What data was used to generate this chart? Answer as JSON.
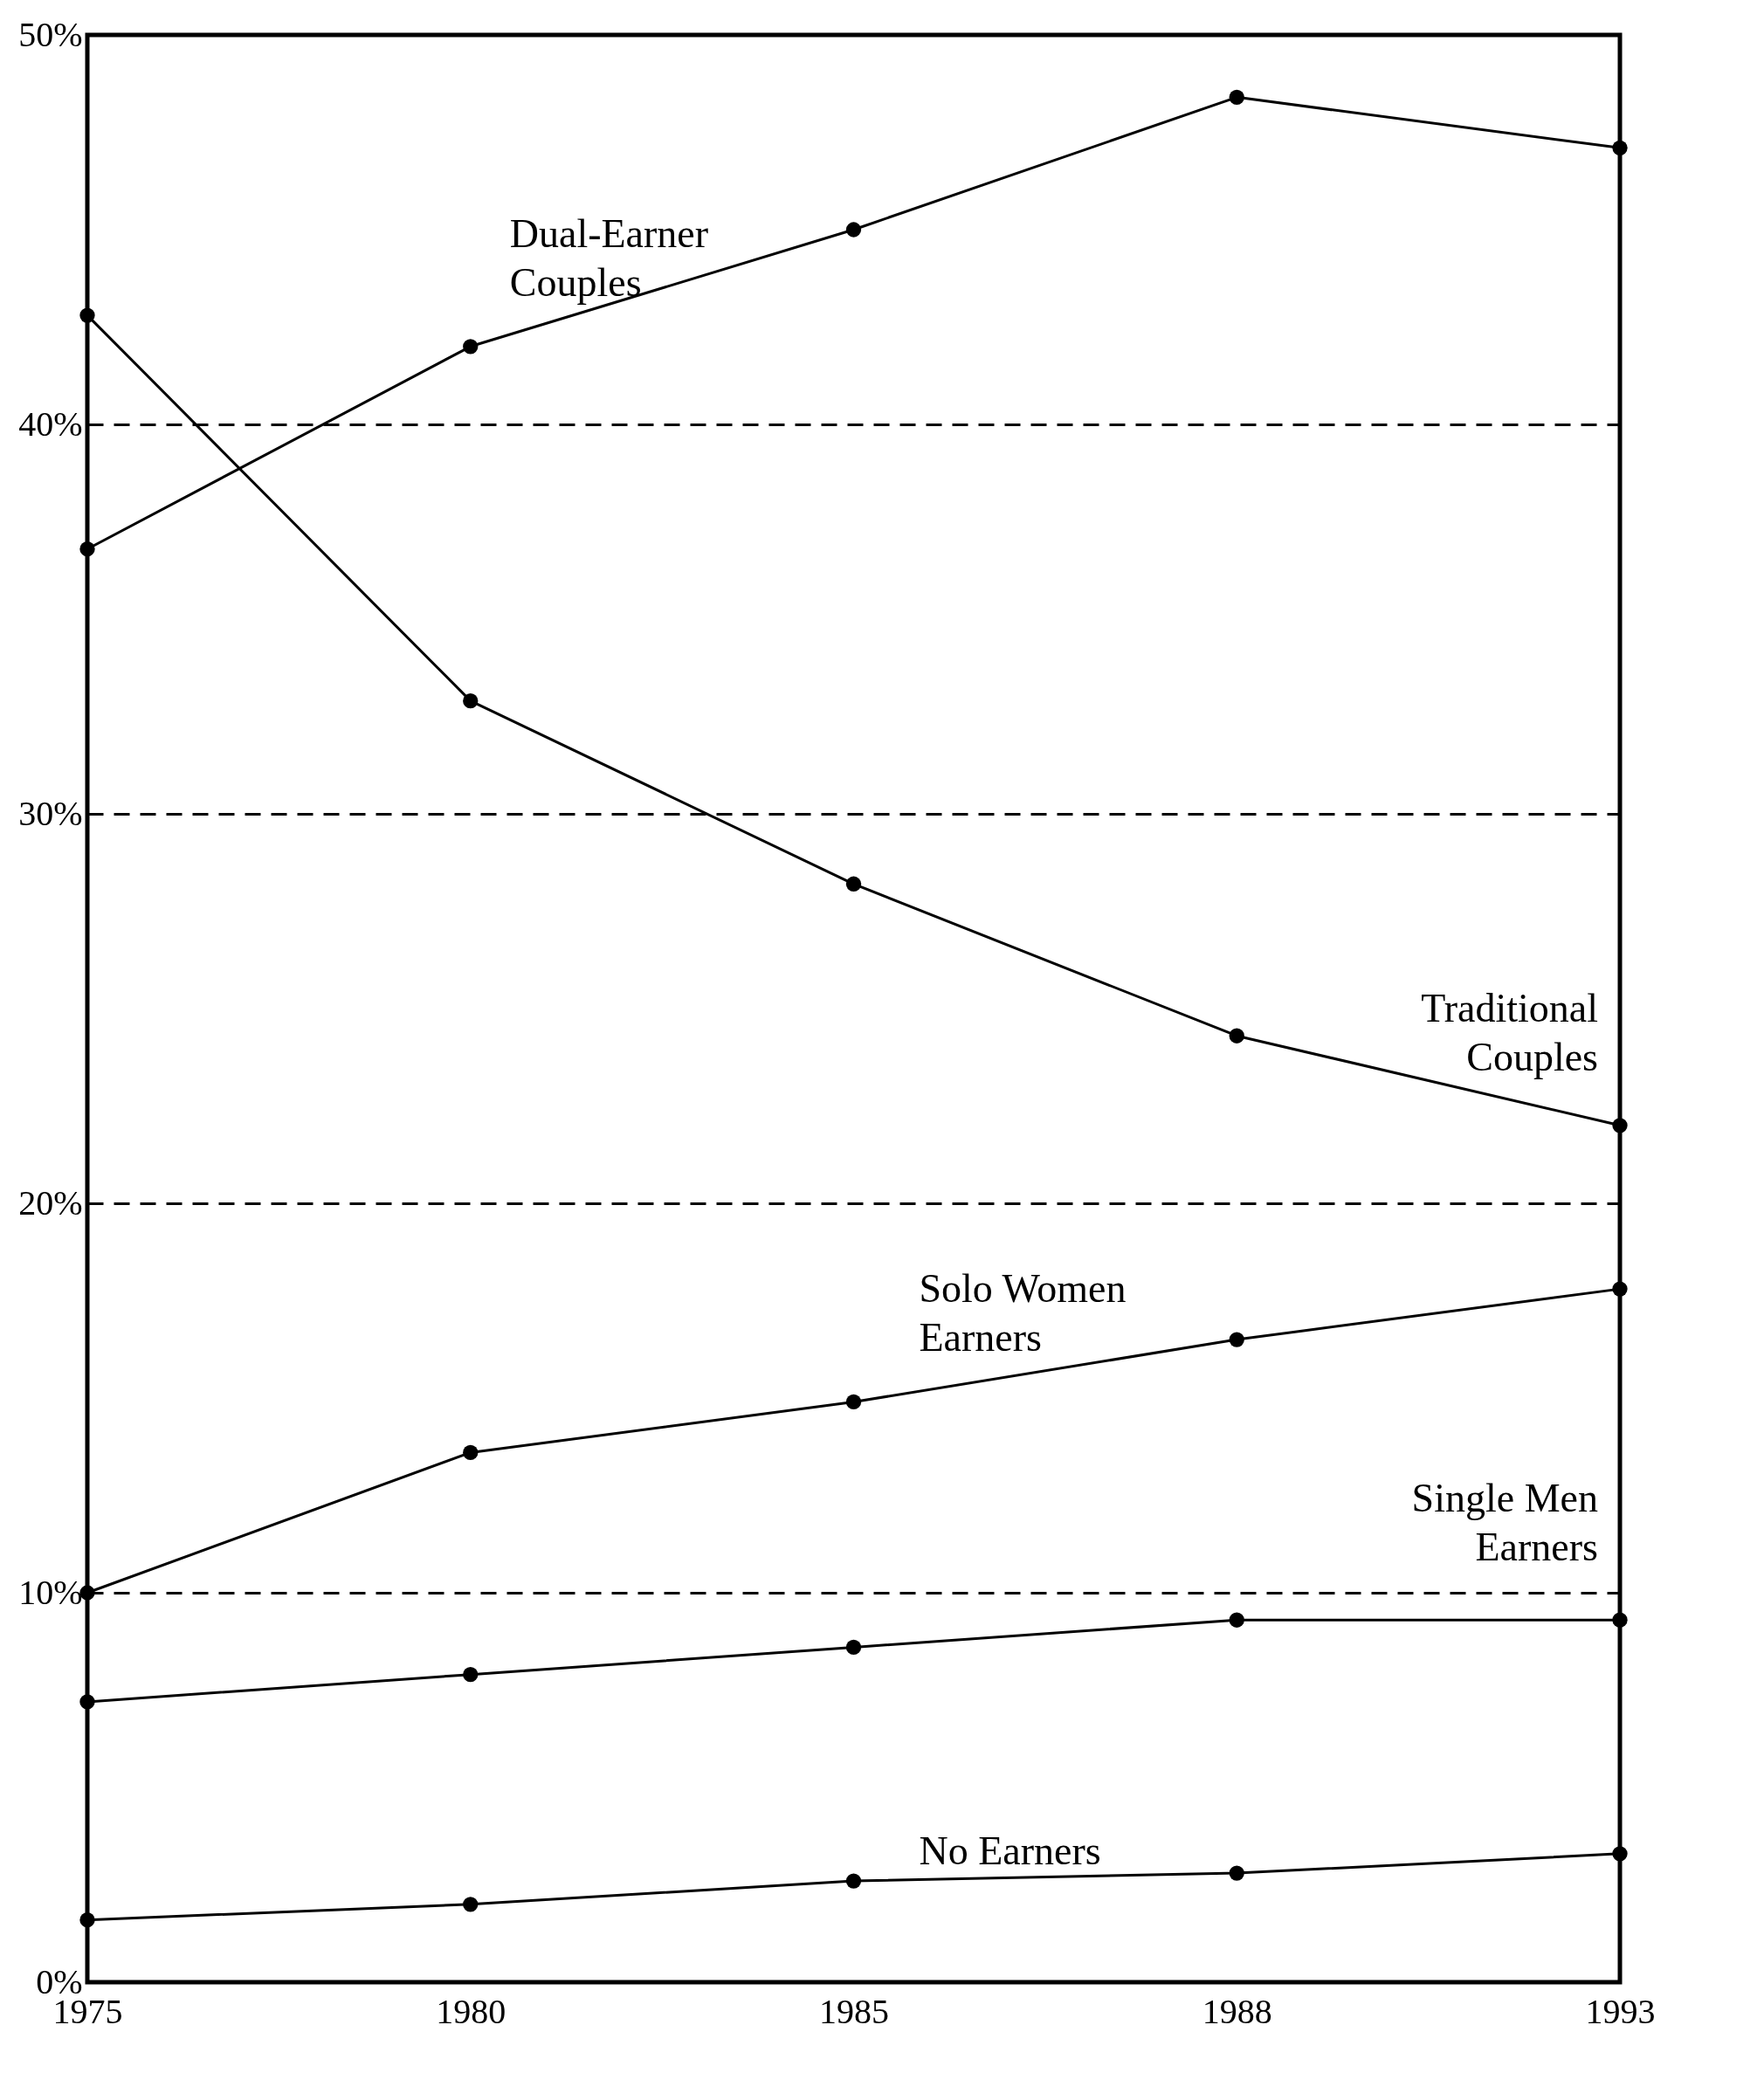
{
  "chart_data": {
    "type": "line",
    "categories": [
      "1975",
      "1980",
      "1985",
      "1988",
      "1993"
    ],
    "ylim": [
      0,
      50
    ],
    "yticks": [
      {
        "value": 0,
        "label": "0%"
      },
      {
        "value": 10,
        "label": "10%"
      },
      {
        "value": 20,
        "label": "20%"
      },
      {
        "value": 30,
        "label": "30%"
      },
      {
        "value": 40,
        "label": "40%"
      },
      {
        "value": 50,
        "label": "50%"
      }
    ],
    "grid": "y",
    "marker": "circle",
    "line_style": "solid",
    "series": [
      {
        "name": "Dual-Earner Couples",
        "color": "#000000",
        "values": [
          36.8,
          42.0,
          45.0,
          48.4,
          47.1
        ]
      },
      {
        "name": "Traditional Couples",
        "color": "#000000",
        "values": [
          42.8,
          32.9,
          28.2,
          24.3,
          22.0
        ]
      },
      {
        "name": "Solo Women Earners",
        "color": "#000000",
        "values": [
          10.0,
          13.6,
          14.9,
          16.5,
          17.8
        ]
      },
      {
        "name": "Single Men Earners",
        "color": "#000000",
        "values": [
          7.2,
          7.9,
          8.6,
          9.3,
          9.3
        ]
      },
      {
        "name": "No Earners",
        "color": "#000000",
        "values": [
          1.6,
          2.0,
          2.6,
          2.8,
          3.3
        ]
      }
    ]
  }
}
